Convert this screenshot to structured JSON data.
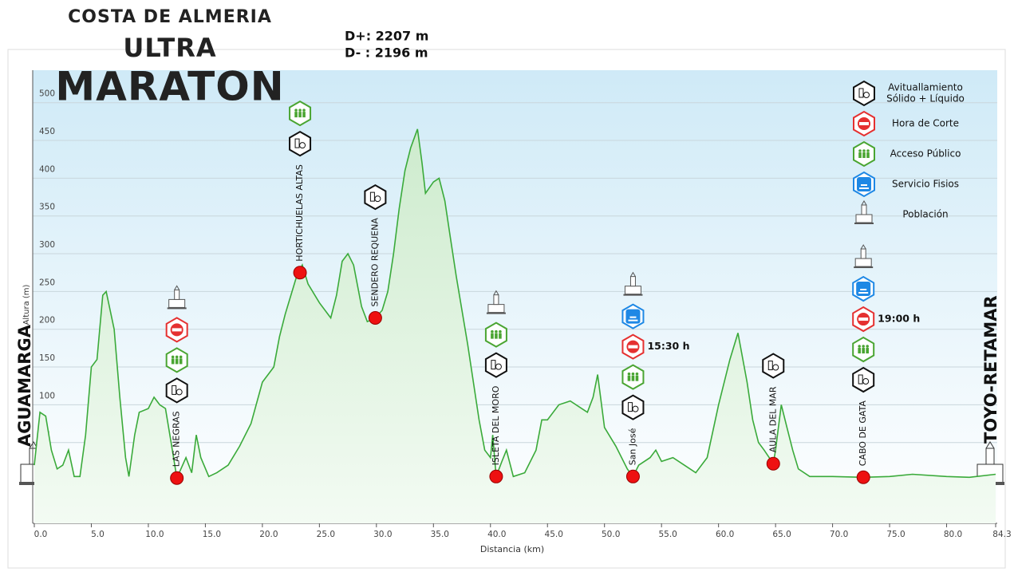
{
  "chart_data": {
    "type": "area",
    "logo": [
      "COSTA DE ALMERIA",
      "ULTRA",
      "MARATON"
    ],
    "stats": [
      "D+: 2207 m",
      "D- : 2196 m"
    ],
    "xlabel": "Distancia  (km)",
    "ylabel": "Altura (m)",
    "start": "AGUAMARGA",
    "finish": "TOYO-RETAMAR",
    "x": [
      0,
      0.5,
      1,
      1.5,
      2,
      2.5,
      3,
      3.5,
      4,
      4.5,
      5,
      5.5,
      6,
      6.3,
      7,
      7.5,
      8,
      8.3,
      8.8,
      9.2,
      10,
      10.5,
      11,
      11.5,
      12,
      12.5,
      13.3,
      13.8,
      14.2,
      14.6,
      15.3,
      16,
      17,
      18,
      19,
      20,
      21,
      21.5,
      22,
      23,
      23.5,
      24,
      25,
      26,
      26.5,
      27,
      27.5,
      28,
      28.7,
      29.2,
      29.9,
      30.5,
      31,
      31.5,
      32,
      32.5,
      33,
      33.6,
      34,
      34.3,
      35,
      35.5,
      36,
      36.5,
      37,
      38,
      39,
      39.5,
      40,
      40.2,
      40.5,
      41,
      41.4,
      42,
      43,
      44,
      44.5,
      45,
      46,
      47,
      48,
      48.5,
      49,
      49.4,
      50,
      51,
      52,
      52.5,
      53,
      54,
      54.5,
      55,
      56,
      57,
      58,
      59,
      60,
      61,
      61.7,
      62.5,
      63,
      63.5,
      64,
      64.8,
      65,
      65.5,
      66,
      66.5,
      67,
      68,
      70,
      72.7,
      75,
      77,
      80,
      82,
      84.3
    ],
    "values": [
      20,
      90,
      85,
      40,
      15,
      20,
      40,
      5,
      5,
      60,
      150,
      160,
      245,
      250,
      200,
      110,
      30,
      5,
      60,
      90,
      95,
      110,
      100,
      95,
      50,
      3,
      30,
      10,
      60,
      30,
      5,
      10,
      20,
      45,
      75,
      130,
      150,
      190,
      220,
      270,
      285,
      260,
      235,
      215,
      245,
      290,
      300,
      285,
      230,
      210,
      215,
      225,
      250,
      300,
      360,
      410,
      440,
      465,
      420,
      380,
      395,
      400,
      370,
      320,
      270,
      180,
      80,
      40,
      30,
      60,
      5,
      25,
      40,
      5,
      10,
      40,
      80,
      80,
      100,
      105,
      95,
      90,
      110,
      140,
      70,
      45,
      15,
      5,
      20,
      30,
      40,
      25,
      30,
      20,
      10,
      30,
      100,
      160,
      195,
      130,
      80,
      50,
      40,
      22,
      40,
      100,
      70,
      40,
      15,
      5,
      5,
      4,
      5,
      8,
      5,
      4,
      8
    ],
    "color": "#3aaa3a",
    "fill": "#dff3df",
    "xlim": [
      0,
      84.3
    ],
    "ylim": [
      -57,
      543
    ],
    "xticks": [
      {
        "value": 0,
        "label": "0.0"
      },
      {
        "value": 5,
        "label": "5.0"
      },
      {
        "value": 10,
        "label": "10.0"
      },
      {
        "value": 15,
        "label": "15.0"
      },
      {
        "value": 20,
        "label": "20.0"
      },
      {
        "value": 25,
        "label": "25.0"
      },
      {
        "value": 30,
        "label": "30.0"
      },
      {
        "value": 35,
        "label": "35.0"
      },
      {
        "value": 40,
        "label": "40.0"
      },
      {
        "value": 45,
        "label": "45.0"
      },
      {
        "value": 50,
        "label": "50.0"
      },
      {
        "value": 55,
        "label": "55.0"
      },
      {
        "value": 60,
        "label": "60.0"
      },
      {
        "value": 65,
        "label": "65.0"
      },
      {
        "value": 70,
        "label": "70.0"
      },
      {
        "value": 75,
        "label": "75.0"
      },
      {
        "value": 80,
        "label": "80.0"
      },
      84.3
    ],
    "yticks": [
      50,
      100,
      150,
      200,
      250,
      300,
      350,
      400,
      450,
      500
    ],
    "grid": true,
    "legend": {
      "position": "upper right",
      "items": [
        {
          "lines": [
            "Avituallamiento",
            "Sólido + Líquido"
          ],
          "color": "#111111"
        },
        {
          "lines": [
            "Hora de Corte"
          ],
          "color": "#e53030"
        },
        {
          "lines": [
            "Acceso Público"
          ],
          "color": "#4aa532"
        },
        {
          "lines": [
            "Servicio Fisios"
          ],
          "color": "#1e88e5"
        },
        {
          "lines": [
            "Población"
          ],
          "color": "#555555"
        }
      ]
    },
    "checkpoints": [
      {
        "name": "LAS NEGRAS",
        "x": 12.5,
        "y": 3,
        "services": [
          4,
          1,
          2,
          0
        ]
      },
      {
        "name": "HORTICHUELAS ALTAS",
        "x": 23.3,
        "y": 275,
        "services": [
          2,
          0
        ]
      },
      {
        "name": "SENDERO REQUENA",
        "x": 29.9,
        "y": 215,
        "services": [
          0
        ]
      },
      {
        "name": "ISLETA DEL MORO",
        "x": 40.5,
        "y": 5,
        "services": [
          4,
          2,
          0
        ]
      },
      {
        "name": "San José",
        "x": 52.5,
        "y": 5,
        "services": [
          4,
          3,
          1,
          2,
          0
        ],
        "time": "15:30 h"
      },
      {
        "name": "AULA DEL MAR",
        "x": 64.8,
        "y": 22,
        "services": [
          0
        ]
      },
      {
        "name": "CABO DE GATA",
        "x": 72.7,
        "y": 4,
        "services": [
          4,
          3,
          1,
          2,
          0
        ],
        "time": "19:00 h"
      }
    ]
  }
}
